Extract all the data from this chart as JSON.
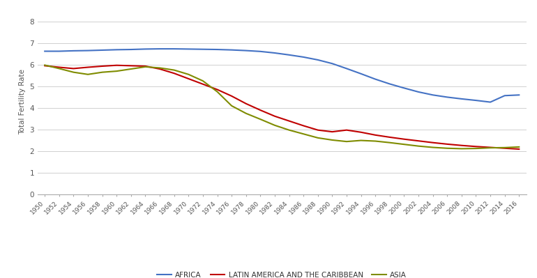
{
  "years": [
    1950,
    1952,
    1954,
    1956,
    1958,
    1960,
    1962,
    1964,
    1966,
    1968,
    1970,
    1972,
    1974,
    1976,
    1978,
    1980,
    1982,
    1984,
    1986,
    1988,
    1990,
    1992,
    1994,
    1996,
    1998,
    2000,
    2002,
    2004,
    2006,
    2008,
    2010,
    2012,
    2014,
    2016
  ],
  "africa": [
    6.62,
    6.62,
    6.64,
    6.65,
    6.67,
    6.69,
    6.7,
    6.72,
    6.73,
    6.73,
    6.72,
    6.71,
    6.7,
    6.68,
    6.65,
    6.61,
    6.54,
    6.45,
    6.35,
    6.22,
    6.05,
    5.82,
    5.58,
    5.33,
    5.11,
    4.92,
    4.74,
    4.6,
    4.5,
    4.42,
    4.35,
    4.27,
    4.57,
    4.6
  ],
  "latin_america": [
    5.95,
    5.88,
    5.82,
    5.88,
    5.93,
    5.97,
    5.95,
    5.93,
    5.8,
    5.6,
    5.35,
    5.1,
    4.85,
    4.55,
    4.2,
    3.9,
    3.62,
    3.4,
    3.18,
    2.98,
    2.9,
    2.98,
    2.88,
    2.75,
    2.65,
    2.56,
    2.48,
    2.4,
    2.33,
    2.27,
    2.22,
    2.18,
    2.14,
    2.1
  ],
  "asia": [
    5.98,
    5.82,
    5.65,
    5.55,
    5.65,
    5.7,
    5.8,
    5.9,
    5.85,
    5.75,
    5.55,
    5.25,
    4.75,
    4.1,
    3.75,
    3.48,
    3.2,
    2.98,
    2.8,
    2.62,
    2.52,
    2.45,
    2.5,
    2.47,
    2.4,
    2.32,
    2.24,
    2.18,
    2.14,
    2.12,
    2.13,
    2.16,
    2.17,
    2.2
  ],
  "ylabel": "Total Fertility Rate",
  "ylim": [
    0,
    8.6
  ],
  "yticks": [
    0,
    1,
    2,
    3,
    4,
    5,
    6,
    7,
    8
  ],
  "africa_color": "#4472C4",
  "latin_color": "#C00000",
  "asia_color": "#7F8C00",
  "bg_color": "#FFFFFF",
  "grid_color": "#D0D0D0",
  "africa_label": "AFRICA",
  "latin_label": "LATIN AMERICA AND THE CARIBBEAN",
  "asia_label": "ASIA"
}
